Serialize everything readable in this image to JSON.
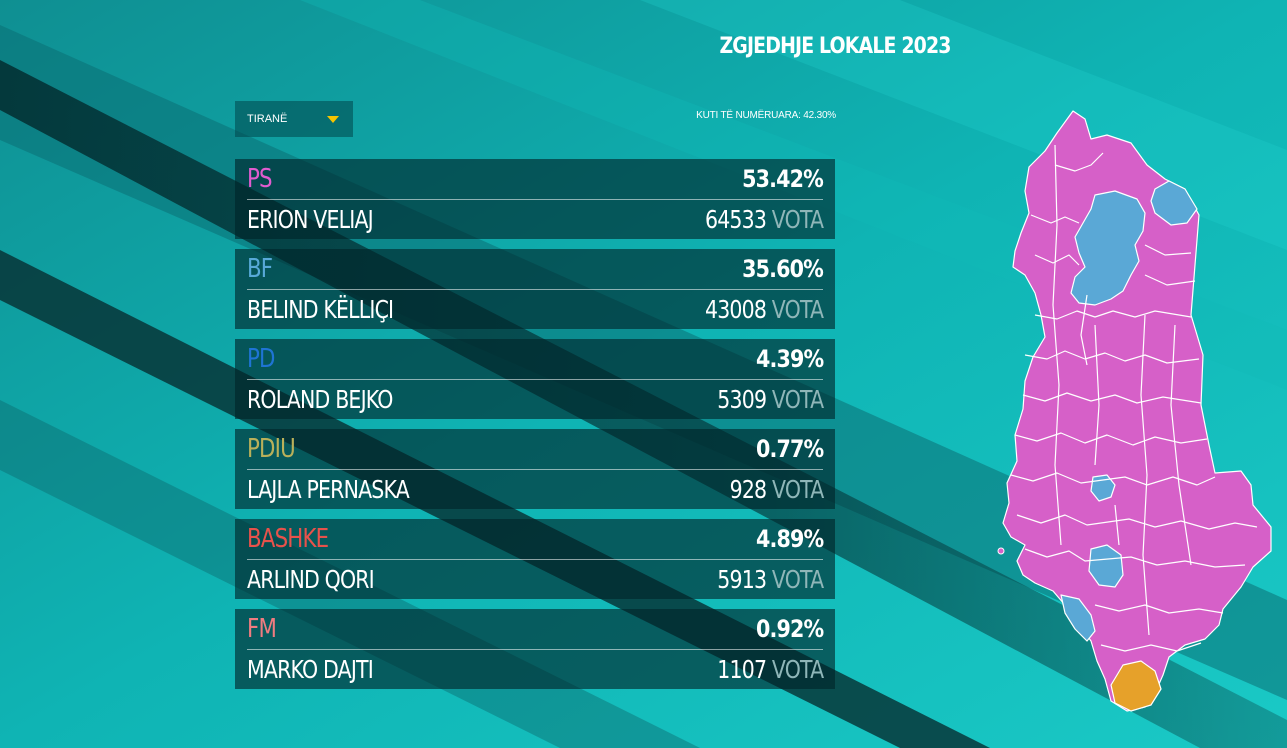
{
  "header": {
    "title": "ZGJEDHJE LOKALE 2023",
    "municipality_selected": "TIRANË",
    "counted_label": "KUTI TË NUMËRUARA: 42.30%"
  },
  "colors": {
    "accent_caret": "#f5c400",
    "map_ps": "#d660c8",
    "map_bf": "#5aa8d6",
    "map_other": "#e6a12a"
  },
  "icons": {
    "dropdown": "caret-down-icon",
    "map": "albania-map"
  },
  "results": [
    {
      "party": "PS",
      "party_color": "#e05ccf",
      "percent": "53.42%",
      "candidate": "ERION VELIAJ",
      "votes": "64533",
      "votes_unit": "VOTA"
    },
    {
      "party": "BF",
      "party_color": "#58a9d8",
      "percent": "35.60%",
      "candidate": "BELIND KËLLIÇI",
      "votes": "43008",
      "votes_unit": "VOTA"
    },
    {
      "party": "PD",
      "party_color": "#1f74d4",
      "percent": "4.39%",
      "candidate": "ROLAND BEJKO",
      "votes": "5309",
      "votes_unit": "VOTA"
    },
    {
      "party": "PDIU",
      "party_color": "#b9b05a",
      "percent": "0.77%",
      "candidate": "LAJLA PERNASKA",
      "votes": "928",
      "votes_unit": "VOTA"
    },
    {
      "party": "BASHKE",
      "party_color": "#e8524b",
      "percent": "4.89%",
      "candidate": "ARLIND QORI",
      "votes": "5913",
      "votes_unit": "VOTA"
    },
    {
      "party": "FM",
      "party_color": "#f07c80",
      "percent": "0.92%",
      "candidate": "MARKO DAJTI",
      "votes": "1107",
      "votes_unit": "VOTA"
    }
  ]
}
